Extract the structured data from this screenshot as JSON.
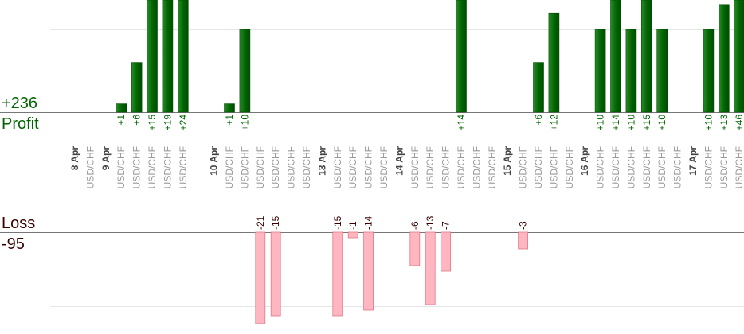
{
  "summary": {
    "profit_total": "+236",
    "profit_label": "Profit",
    "loss_label": "Loss",
    "loss_total": "-95"
  },
  "chart_data": {
    "type": "bar",
    "title": "",
    "xlabel": "",
    "ylabel": "",
    "grid": true,
    "colors": {
      "profit_bar": "#006400",
      "profit_bar_highlight": "#2a8a2a",
      "loss_bar": "#ffb6c1",
      "loss_bar_border": "#e07a86",
      "profit_text": "#006400",
      "loss_text": "#3a0000",
      "symbol_text": "#999999",
      "date_text": "#444444"
    },
    "dates": [
      {
        "label": "8 Apr",
        "slot": 0
      },
      {
        "label": "9 Apr",
        "slot": 2
      },
      {
        "label": "10 Apr",
        "slot": 9
      },
      {
        "label": "13 Apr",
        "slot": 16
      },
      {
        "label": "14 Apr",
        "slot": 21
      },
      {
        "label": "15 Apr",
        "slot": 28
      },
      {
        "label": "16 Apr",
        "slot": 33
      },
      {
        "label": "17 Apr",
        "slot": 40
      }
    ],
    "trades": [
      {
        "slot": 1,
        "symbol": "USD/CHF",
        "value": null,
        "label": ""
      },
      {
        "slot": 3,
        "symbol": "USD/CHF",
        "value": 1,
        "label": "+1"
      },
      {
        "slot": 4,
        "symbol": "USD/CHF",
        "value": 6,
        "label": "+6"
      },
      {
        "slot": 5,
        "symbol": "USD/CHF",
        "value": 15,
        "label": "+15"
      },
      {
        "slot": 6,
        "symbol": "USD/CHF",
        "value": 19,
        "label": "+19"
      },
      {
        "slot": 7,
        "symbol": "USD/CHF",
        "value": 24,
        "label": "+24"
      },
      {
        "slot": 10,
        "symbol": "USD/CHF",
        "value": 1,
        "label": "+1"
      },
      {
        "slot": 11,
        "symbol": "USD/CHF",
        "value": 10,
        "label": "+10"
      },
      {
        "slot": 12,
        "symbol": "USD/CHF",
        "value": -21,
        "label": "-21"
      },
      {
        "slot": 13,
        "symbol": "USD/CHF",
        "value": -15,
        "label": "-15"
      },
      {
        "slot": 14,
        "symbol": "USD/CHF",
        "value": null,
        "label": ""
      },
      {
        "slot": 15,
        "symbol": "USD/CHF",
        "value": null,
        "label": ""
      },
      {
        "slot": 17,
        "symbol": "USD/CHF",
        "value": -15,
        "label": "-15"
      },
      {
        "slot": 18,
        "symbol": "USD/CHF",
        "value": -1,
        "label": "-1"
      },
      {
        "slot": 19,
        "symbol": "USD/CHF",
        "value": -14,
        "label": "-14"
      },
      {
        "slot": 20,
        "symbol": "USD/CHF",
        "value": null,
        "label": ""
      },
      {
        "slot": 22,
        "symbol": "USD/CHF",
        "value": -6,
        "label": "-6"
      },
      {
        "slot": 23,
        "symbol": "USD/CHF",
        "value": -13,
        "label": "-13"
      },
      {
        "slot": 24,
        "symbol": "USD/CHF",
        "value": -7,
        "label": "-7"
      },
      {
        "slot": 25,
        "symbol": "USD/CHF",
        "value": 14,
        "label": "+14"
      },
      {
        "slot": 26,
        "symbol": "USD/CHF",
        "value": null,
        "label": ""
      },
      {
        "slot": 27,
        "symbol": "USD/CHF",
        "value": null,
        "label": ""
      },
      {
        "slot": 29,
        "symbol": "USD/CHF",
        "value": -3,
        "label": "-3"
      },
      {
        "slot": 30,
        "symbol": "USD/CHF",
        "value": 6,
        "label": "+6"
      },
      {
        "slot": 31,
        "symbol": "USD/CHF",
        "value": 12,
        "label": "+12"
      },
      {
        "slot": 32,
        "symbol": "USD/CHF",
        "value": null,
        "label": ""
      },
      {
        "slot": 34,
        "symbol": "USD/CHF",
        "value": 10,
        "label": "+10"
      },
      {
        "slot": 35,
        "symbol": "USD/CHF",
        "value": 14,
        "label": "+14"
      },
      {
        "slot": 36,
        "symbol": "USD/CHF",
        "value": 10,
        "label": "+10"
      },
      {
        "slot": 37,
        "symbol": "USD/CHF",
        "value": 15,
        "label": "+15"
      },
      {
        "slot": 38,
        "symbol": "USD/CHF",
        "value": 10,
        "label": "+10"
      },
      {
        "slot": 39,
        "symbol": "USD/CHF",
        "value": null,
        "label": ""
      },
      {
        "slot": 41,
        "symbol": "USD/CHF",
        "value": 10,
        "label": "+10"
      },
      {
        "slot": 42,
        "symbol": "USD/CHF",
        "value": 13,
        "label": "+13"
      },
      {
        "slot": 43,
        "symbol": "USD/CHF",
        "value": 46,
        "label": "+46"
      }
    ]
  }
}
